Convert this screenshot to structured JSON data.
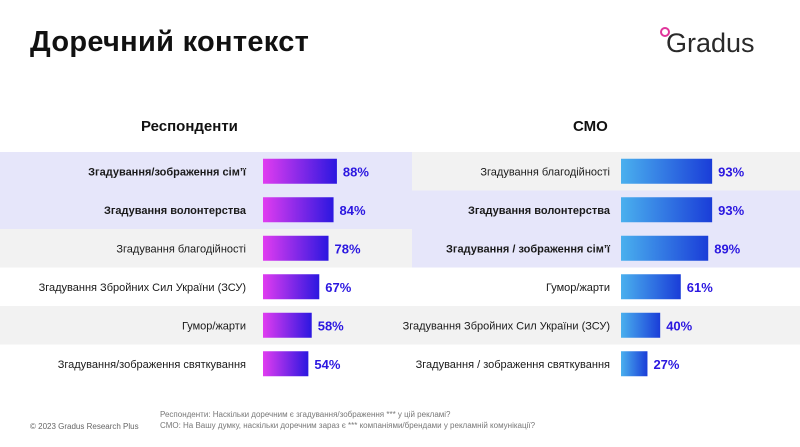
{
  "header": {
    "title": "Доречний контекст",
    "logo_text": "Gradus"
  },
  "chart_data": [
    {
      "type": "bar",
      "orientation": "horizontal",
      "title": "Респонденти",
      "unit": "%",
      "categories": [
        "Згадування/зображення сім’ї",
        "Згадування волонтерства",
        "Згадування благодійності",
        "Згадування Збройних Сил України (ЗСУ)",
        "Гумор/жарти",
        "Згадування/зображення святкування"
      ],
      "values": [
        88,
        84,
        78,
        67,
        58,
        54
      ],
      "labels": [
        "88%",
        "84%",
        "78%",
        "67%",
        "58%",
        "54%"
      ],
      "highlighted": [
        true,
        true,
        false,
        false,
        false,
        false
      ],
      "gradient": [
        "#e13cf0",
        "#2b17e0"
      ],
      "label_color": "#2b17e0"
    },
    {
      "type": "bar",
      "orientation": "horizontal",
      "title": "СМО",
      "unit": "%",
      "categories": [
        "Згадування благодійності",
        "Згадування волонтерства",
        "Згадування / зображення сім’ї",
        "Гумор/жарти",
        "Згадування Збройних Сил України (ЗСУ)",
        "Згадування / зображення святкування"
      ],
      "values": [
        93,
        93,
        89,
        61,
        40,
        27
      ],
      "labels": [
        "93%",
        "93%",
        "89%",
        "61%",
        "40%",
        "27%"
      ],
      "highlighted": [
        false,
        true,
        true,
        false,
        false,
        false
      ],
      "gradient": [
        "#4ab0ee",
        "#1a3dd8"
      ],
      "label_color": "#2b17e0"
    }
  ],
  "footer": {
    "copyright": "© 2023 Gradus Research Plus",
    "notes": [
      "Респонденти: Наскільки доречним є згадування/зображення *** у цій рекламі?",
      "СМО: На Вашу думку, наскільки доречним зараз є ***  компаніями/брендами у рекламній комунікації?"
    ]
  },
  "colors": {
    "row_highlight": "#e6e6fa",
    "row_alt": "#f2f2f2"
  }
}
